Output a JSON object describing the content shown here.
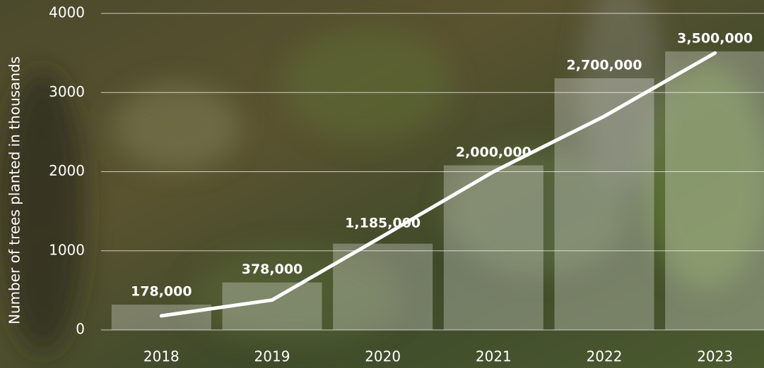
{
  "chart_data": {
    "type": "combo",
    "y_label": "Number of trees planted in thousands",
    "categories": [
      "2018",
      "2019",
      "2020",
      "2021",
      "2022",
      "2023"
    ],
    "ylim": [
      0,
      4000
    ],
    "yticks": [
      0,
      1000,
      2000,
      3000,
      4000
    ],
    "grid": true,
    "series": [
      {
        "kind": "bar",
        "color": "#ffffff",
        "values": [
          320,
          600,
          1090,
          2080,
          3180,
          3520
        ]
      },
      {
        "kind": "line",
        "color": "#ffffff",
        "values": [
          178,
          378,
          1185,
          2000,
          2700,
          3500
        ],
        "value_labels": [
          "178,000",
          "378,000",
          "1,185,000",
          "2,000,000",
          "2,700,000",
          "3,500,000"
        ]
      }
    ]
  }
}
